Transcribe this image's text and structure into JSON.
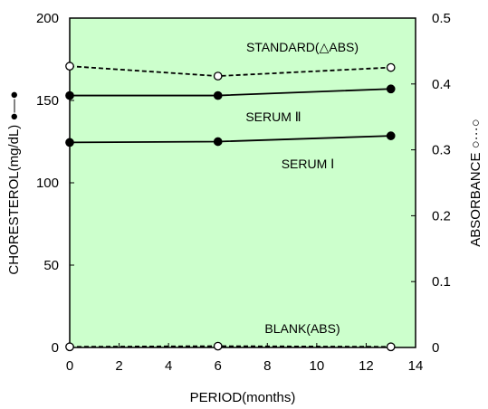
{
  "chart_data": {
    "type": "line",
    "xlabel": "PERIOD(months)",
    "ylabel_left": "CHORESTEROL(mg/dL) ●―●",
    "ylabel_right": "ABSORBANCE ○···○",
    "xlim": [
      0,
      14
    ],
    "ylim_left": [
      0,
      200
    ],
    "ylim_right": [
      0,
      0.5
    ],
    "x_ticks": [
      "0",
      "2",
      "4",
      "6",
      "8",
      "10",
      "12",
      "14"
    ],
    "y_left_ticks": [
      "0",
      "50",
      "100",
      "150",
      "200"
    ],
    "y_right_ticks": [
      "0",
      "0.1",
      "0.2",
      "0.3",
      "0.4",
      "0.5"
    ],
    "plot_background": "#ccffcc",
    "series": [
      {
        "name": "STANDARD(△ABS)",
        "axis": "right",
        "style": "dashed",
        "marker": "open-circle",
        "x": [
          0,
          6,
          13
        ],
        "y": [
          0.427,
          0.412,
          0.425
        ]
      },
      {
        "name": "SERUM Ⅱ",
        "axis": "left",
        "style": "solid",
        "marker": "filled-circle",
        "x": [
          0,
          6,
          13
        ],
        "y": [
          153,
          153,
          157
        ]
      },
      {
        "name": "SERUM Ⅰ",
        "axis": "left",
        "style": "solid",
        "marker": "filled-circle",
        "x": [
          0,
          6,
          13
        ],
        "y": [
          124.5,
          125,
          128.5
        ]
      },
      {
        "name": "BLANK(ABS)",
        "axis": "right",
        "style": "dashed",
        "marker": "open-circle",
        "x": [
          0,
          6,
          13
        ],
        "y": [
          0.001,
          0.002,
          0.001
        ]
      }
    ]
  }
}
